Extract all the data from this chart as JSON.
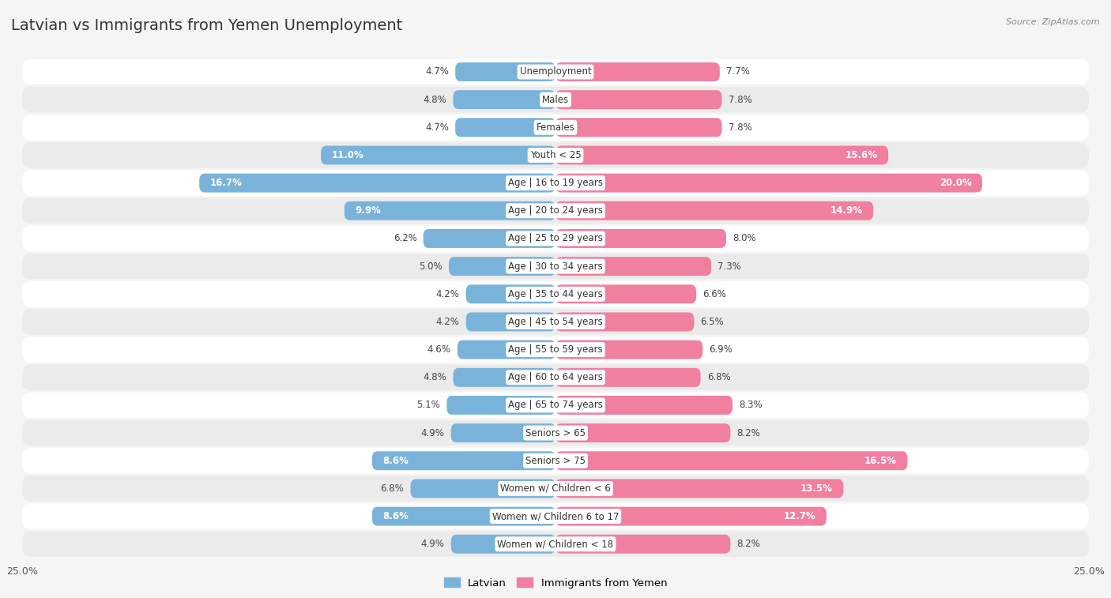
{
  "title": "Latvian vs Immigrants from Yemen Unemployment",
  "source": "Source: ZipAtlas.com",
  "categories": [
    "Unemployment",
    "Males",
    "Females",
    "Youth < 25",
    "Age | 16 to 19 years",
    "Age | 20 to 24 years",
    "Age | 25 to 29 years",
    "Age | 30 to 34 years",
    "Age | 35 to 44 years",
    "Age | 45 to 54 years",
    "Age | 55 to 59 years",
    "Age | 60 to 64 years",
    "Age | 65 to 74 years",
    "Seniors > 65",
    "Seniors > 75",
    "Women w/ Children < 6",
    "Women w/ Children 6 to 17",
    "Women w/ Children < 18"
  ],
  "latvian": [
    4.7,
    4.8,
    4.7,
    11.0,
    16.7,
    9.9,
    6.2,
    5.0,
    4.2,
    4.2,
    4.6,
    4.8,
    5.1,
    4.9,
    8.6,
    6.8,
    8.6,
    4.9
  ],
  "yemen": [
    7.7,
    7.8,
    7.8,
    15.6,
    20.0,
    14.9,
    8.0,
    7.3,
    6.6,
    6.5,
    6.9,
    6.8,
    8.3,
    8.2,
    16.5,
    13.5,
    12.7,
    8.2
  ],
  "latvian_color": "#7ab3d9",
  "yemen_color": "#f07fa0",
  "row_color_odd": "#f2f2f2",
  "row_color_even": "#e8e8e8",
  "background_color": "#f5f5f5",
  "axis_limit": 25.0,
  "legend_latvian": "Latvian",
  "legend_yemen": "Immigrants from Yemen",
  "title_fontsize": 14,
  "label_fontsize": 8.5,
  "value_fontsize": 8.5
}
